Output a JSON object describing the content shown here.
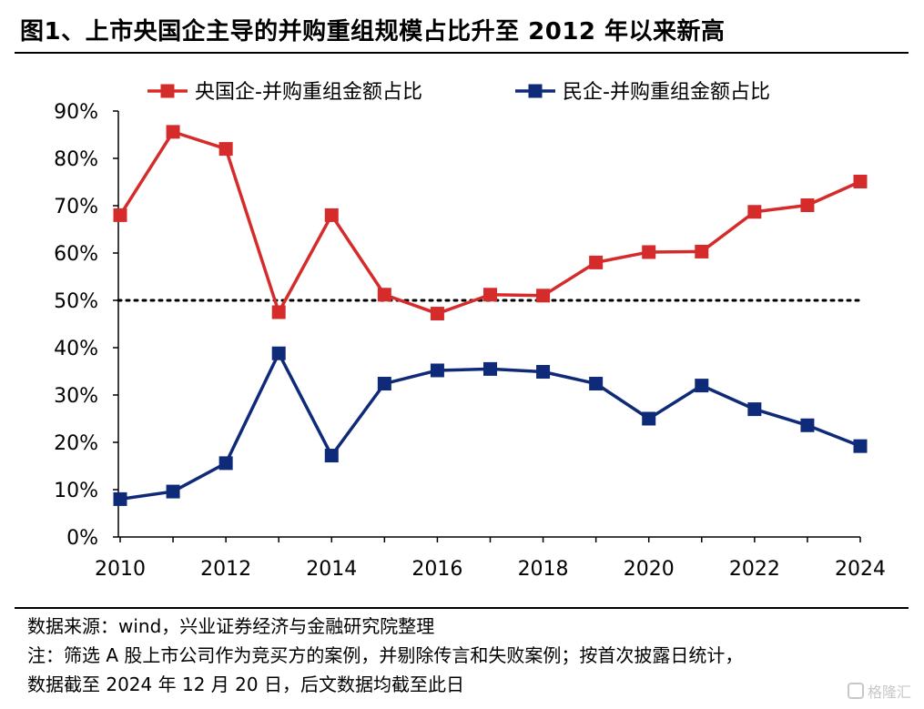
{
  "title": "图1、上市央国企主导的并购重组规模占比升至 2012 年以来新高",
  "footnotes": {
    "source": "数据来源：wind，兴业证券经济与金融研究院整理",
    "note": "注：筛选 A 股上市公司作为竞买方的案例，并剔除传言和失败案例；按首次披露日统计，",
    "cutoff": "数据截至 2024 年 12 月 20 日，后文数据均截至此日"
  },
  "watermark": "格隆汇",
  "chart_data": {
    "type": "line",
    "title": "",
    "xlabel": "",
    "ylabel": "",
    "x": [
      2010,
      2011,
      2012,
      2013,
      2014,
      2015,
      2016,
      2017,
      2018,
      2019,
      2020,
      2021,
      2022,
      2023,
      2024
    ],
    "x_tick_labels": [
      "2010",
      "2012",
      "2014",
      "2016",
      "2018",
      "2020",
      "2022",
      "2024"
    ],
    "y_tick_labels": [
      "0%",
      "10%",
      "20%",
      "30%",
      "40%",
      "50%",
      "60%",
      "70%",
      "80%",
      "90%"
    ],
    "ylim": [
      0,
      90
    ],
    "grid": false,
    "legend_position": "top",
    "reference_line": {
      "value": 50,
      "style": "dotted"
    },
    "series": [
      {
        "name": "央国企-并购重组金额占比",
        "color": "#d62b2b",
        "marker": "square",
        "values": [
          68,
          85.6,
          82,
          47.5,
          68,
          51.2,
          47.2,
          51.2,
          51,
          58,
          60.2,
          60.3,
          68.7,
          70.1,
          75.1
        ]
      },
      {
        "name": "民企-并购重组金额占比",
        "color": "#0f2a78",
        "marker": "square",
        "values": [
          8,
          9.6,
          15.6,
          38.8,
          17.2,
          32.4,
          35.2,
          35.5,
          34.9,
          32.4,
          25,
          32,
          27,
          23.6,
          19.2
        ]
      }
    ]
  }
}
